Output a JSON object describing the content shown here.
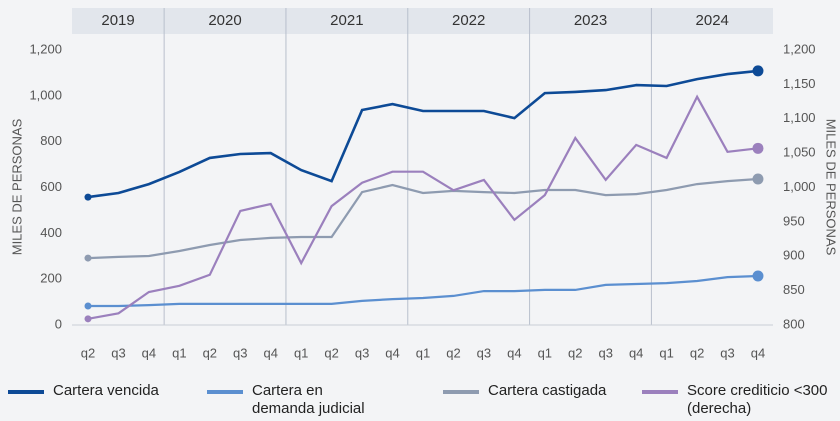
{
  "chart_data": {
    "type": "line",
    "categories": [
      "q2",
      "q3",
      "q4",
      "q1",
      "q2",
      "q3",
      "q4",
      "q1",
      "q2",
      "q3",
      "q4",
      "q1",
      "q2",
      "q3",
      "q4",
      "q1",
      "q2",
      "q3",
      "q4",
      "q1",
      "q2",
      "q3",
      "q4"
    ],
    "category_groups": [
      {
        "label": "2019",
        "size": 3
      },
      {
        "label": "2020",
        "size": 4
      },
      {
        "label": "2021",
        "size": 4
      },
      {
        "label": "2022",
        "size": 4
      },
      {
        "label": "2023",
        "size": 4
      },
      {
        "label": "2024",
        "size": 4
      }
    ],
    "ylabel": "MILES DE PERSONAS",
    "y2label": "MILES DE PERSONAS",
    "ylim": [
      0,
      1200
    ],
    "yticks": [
      0,
      200,
      400,
      600,
      800,
      {
        "value": 1000,
        "label": "1,000"
      },
      {
        "value": 1200,
        "label": "1,200"
      }
    ],
    "y2lim": [
      800,
      1200
    ],
    "y2ticks": [
      800,
      850,
      900,
      950,
      {
        "value": 1000,
        "label": "1,000"
      },
      {
        "value": 1050,
        "label": "1,050"
      },
      {
        "value": 1100,
        "label": "1,100"
      },
      {
        "value": 1150,
        "label": "1,150"
      },
      {
        "value": 1200,
        "label": "1,200"
      }
    ],
    "series": [
      {
        "name": "Cartera vencida",
        "color": "#0d4a96",
        "values": [
          558,
          576,
          615,
          668,
          729,
          746,
          750,
          676,
          628,
          938,
          964,
          934,
          934,
          934,
          903,
          1012,
          1017,
          1025,
          1047,
          1043,
          1073,
          1095,
          1109
        ]
      },
      {
        "name": "Cartera en demanda judicial",
        "color": "#5b8fd0",
        "values": [
          83,
          83,
          87,
          92,
          92,
          92,
          92,
          92,
          92,
          105,
          113,
          118,
          127,
          148,
          148,
          153,
          153,
          175,
          179,
          183,
          192,
          209,
          214
        ]
      },
      {
        "name": "Cartera castigada",
        "color": "#8e9bb0",
        "values": [
          292,
          297,
          301,
          323,
          349,
          371,
          380,
          384,
          384,
          580,
          611,
          576,
          585,
          580,
          576,
          589,
          589,
          567,
          571,
          589,
          615,
          628,
          637
        ]
      },
      {
        "name": "Score crediticio <300 (derecha)",
        "color": "#9b80bd",
        "axis": "y2",
        "values": [
          809,
          817,
          848,
          857,
          873,
          966,
          976,
          890,
          973,
          1007,
          1023,
          1023,
          996,
          1011,
          953,
          989,
          1072,
          1011,
          1062,
          1043,
          1132,
          1052,
          1057
        ]
      }
    ]
  }
}
